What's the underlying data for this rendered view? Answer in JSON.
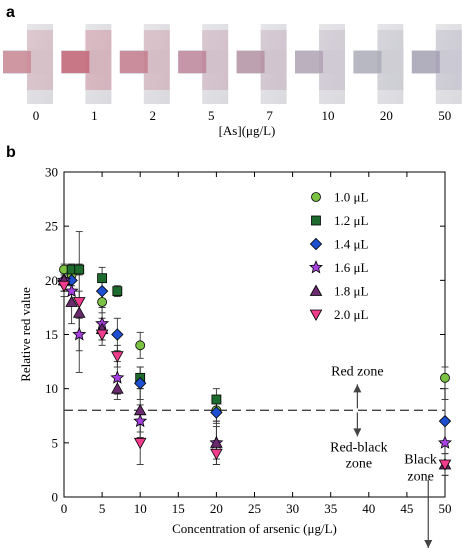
{
  "panel_a": {
    "letter": "a",
    "xlabel": "[As](μg/L)",
    "strips": [
      {
        "label": "0",
        "tint": "#c9828f",
        "strength": 0.85
      },
      {
        "label": "1",
        "tint": "#c56c7d",
        "strength": 1.0
      },
      {
        "label": "2",
        "tint": "#c47585",
        "strength": 0.85
      },
      {
        "label": "5",
        "tint": "#b8738b",
        "strength": 0.75
      },
      {
        "label": "7",
        "tint": "#a8788f",
        "strength": 0.65
      },
      {
        "label": "10",
        "tint": "#9a839c",
        "strength": 0.55
      },
      {
        "label": "20",
        "tint": "#8c8ba0",
        "strength": 0.5
      },
      {
        "label": "50",
        "tint": "#867f9b",
        "strength": 0.55
      }
    ]
  },
  "chart_data": {
    "type": "scatter",
    "panel_letter": "b",
    "xlabel": "Concentration of arsenic (μg/L)",
    "ylabel": "Relative red value",
    "xlim": [
      0,
      50
    ],
    "ylim": [
      0,
      30
    ],
    "xticks": [
      0,
      5,
      10,
      15,
      20,
      25,
      30,
      35,
      40,
      45,
      50
    ],
    "yticks": [
      0,
      5,
      10,
      15,
      20,
      25,
      30
    ],
    "threshold": 8,
    "legend_position": "top-right",
    "zone_labels": {
      "red": "Red zone",
      "red_black_1": "Red-black",
      "red_black_2": "zone",
      "black_1": "Black",
      "black_2": "zone"
    },
    "series": [
      {
        "name": "1.0 μL",
        "marker": "circle",
        "color": "#7cc242",
        "points": [
          {
            "x": 0,
            "y": 21.0,
            "err": 0.5
          },
          {
            "x": 1,
            "y": 20.5,
            "err": 1.0
          },
          {
            "x": 5,
            "y": 18.0,
            "err": 1.0
          },
          {
            "x": 10,
            "y": 14.0,
            "err": 1.2
          },
          {
            "x": 20,
            "y": 8.0,
            "err": 1.0
          },
          {
            "x": 50,
            "y": 11.0,
            "err": 1.0
          }
        ]
      },
      {
        "name": "1.2 μL",
        "marker": "square",
        "color": "#1e6b2e",
        "points": [
          {
            "x": 1,
            "y": 21.0,
            "err": 0.5
          },
          {
            "x": 2,
            "y": 21.0,
            "err": 0.5
          },
          {
            "x": 5,
            "y": 20.2,
            "err": 1.0
          },
          {
            "x": 7,
            "y": 19.0,
            "err": 0.5
          },
          {
            "x": 10,
            "y": 11.0,
            "err": 1.0
          },
          {
            "x": 20,
            "y": 9.0,
            "err": 1.0
          }
        ]
      },
      {
        "name": "1.4 μL",
        "marker": "diamond",
        "color": "#1f4fd1",
        "points": [
          {
            "x": 0,
            "y": 20.0,
            "err": 1.0
          },
          {
            "x": 1,
            "y": 20.0,
            "err": 1.0
          },
          {
            "x": 5,
            "y": 19.0,
            "err": 1.5
          },
          {
            "x": 7,
            "y": 15.0,
            "err": 1.5
          },
          {
            "x": 10,
            "y": 10.5,
            "err": 1.5
          },
          {
            "x": 20,
            "y": 7.8,
            "err": 1.0
          },
          {
            "x": 50,
            "y": 7.0,
            "err": 2.0
          }
        ]
      },
      {
        "name": "1.6 μL",
        "marker": "star",
        "color": "#a641e0",
        "points": [
          {
            "x": 0,
            "y": 20.0,
            "err": 1.0
          },
          {
            "x": 1,
            "y": 19.0,
            "err": 1.0
          },
          {
            "x": 2,
            "y": 15.0,
            "err": 1.5
          },
          {
            "x": 5,
            "y": 16.0,
            "err": 1.5
          },
          {
            "x": 7,
            "y": 11.0,
            "err": 1.5
          },
          {
            "x": 10,
            "y": 7.0,
            "err": 1.5
          },
          {
            "x": 20,
            "y": 5.0,
            "err": 1.5
          },
          {
            "x": 50,
            "y": 5.0,
            "err": 2.0
          }
        ]
      },
      {
        "name": "1.8 μL",
        "marker": "triangle-up",
        "color": "#6b2a6e",
        "points": [
          {
            "x": 0,
            "y": 20.0,
            "err": 1.0
          },
          {
            "x": 1,
            "y": 18.0,
            "err": 2.0
          },
          {
            "x": 2,
            "y": 17.0,
            "err": 2.0
          },
          {
            "x": 5,
            "y": 15.5,
            "err": 1.0
          },
          {
            "x": 7,
            "y": 10.0,
            "err": 1.0
          },
          {
            "x": 10,
            "y": 8.0,
            "err": 2.0
          },
          {
            "x": 20,
            "y": 5.0,
            "err": 2.0
          },
          {
            "x": 50,
            "y": 3.0,
            "err": 1.0
          }
        ]
      },
      {
        "name": "2.0 μL",
        "marker": "triangle-down",
        "color": "#f03c8c",
        "points": [
          {
            "x": 0,
            "y": 19.5,
            "err": 1.0
          },
          {
            "x": 2,
            "y": 18.0,
            "err": 6.5
          },
          {
            "x": 5,
            "y": 15.0,
            "err": 1.0
          },
          {
            "x": 7,
            "y": 13.0,
            "err": 1.0
          },
          {
            "x": 10,
            "y": 5.0,
            "err": 2.0
          },
          {
            "x": 20,
            "y": 4.0,
            "err": 1.0
          },
          {
            "x": 50,
            "y": 3.0,
            "err": 1.0
          }
        ]
      }
    ]
  }
}
